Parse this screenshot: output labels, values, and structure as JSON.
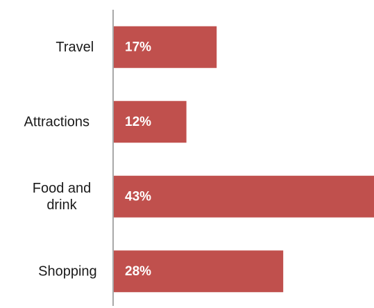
{
  "chart_data": {
    "type": "bar",
    "orientation": "horizontal",
    "title": "",
    "xlabel": "",
    "ylabel": "",
    "categories": [
      "Travel",
      "Attractions",
      "Food and drink",
      "Shopping"
    ],
    "category_lines": [
      [
        "Travel"
      ],
      [
        "Attractions"
      ],
      [
        "Food and",
        "drink"
      ],
      [
        "Shopping"
      ]
    ],
    "values": [
      17,
      12,
      43,
      28
    ],
    "value_labels": [
      "17%",
      "12%",
      "43%",
      "28%"
    ],
    "xlim": [
      0,
      43
    ],
    "bar_color": "#c0504d",
    "axis_color": "#8c8c8c",
    "grid": false,
    "legend": "none"
  }
}
